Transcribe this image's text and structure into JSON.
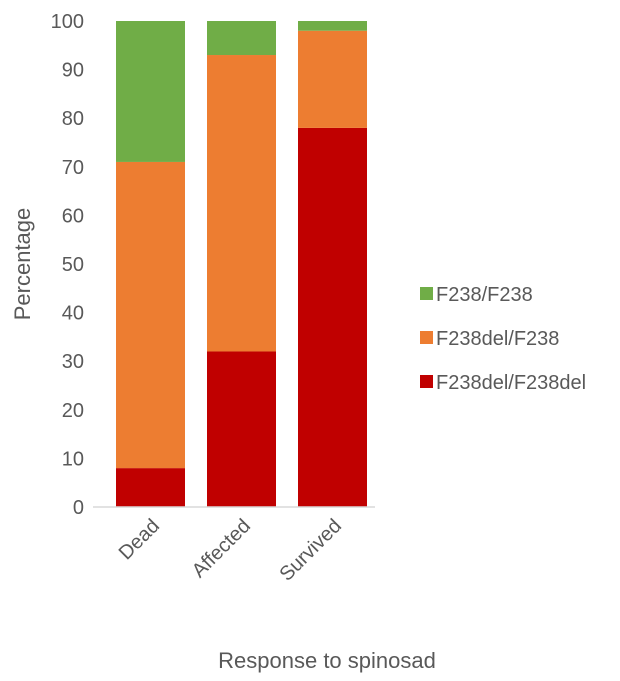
{
  "chart_data": {
    "type": "bar",
    "stacked": true,
    "categories": [
      "Dead",
      "Affected",
      "Survived"
    ],
    "series": [
      {
        "name": "F238del/F238del",
        "color": "#C00000",
        "values": [
          8,
          32,
          78
        ]
      },
      {
        "name": "F238del/F238",
        "color": "#ED7D31",
        "values": [
          63,
          61,
          20
        ]
      },
      {
        "name": "F238/F238",
        "color": "#70AD47",
        "values": [
          29,
          7,
          2
        ]
      }
    ],
    "title": "",
    "xlabel": "Response to spinosad",
    "ylabel": "Percentage",
    "ylim": [
      0,
      100
    ],
    "yticks": [
      0,
      10,
      20,
      30,
      40,
      50,
      60,
      70,
      80,
      90,
      100
    ],
    "grid": false,
    "legend_position": "right"
  }
}
